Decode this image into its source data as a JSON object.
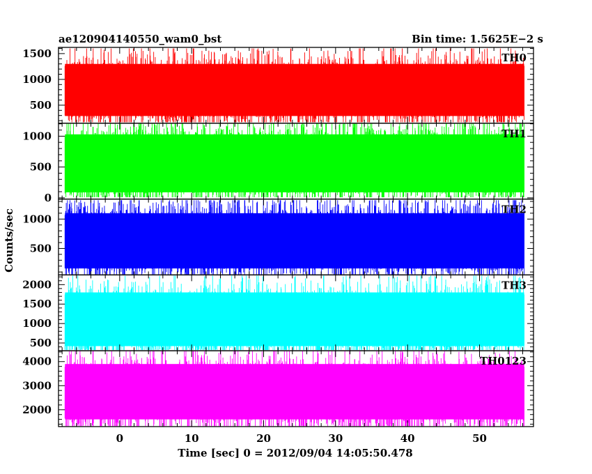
{
  "header": {
    "left_title": "ae120904140550_wam0_bst",
    "right_title": "Bin time: 1.5625E−2 s"
  },
  "ylabel": "Counts/sec",
  "xlabel": "Time [sec] 0 = 2012/09/04 14:05:50.478",
  "chart_data": {
    "type": "line",
    "title": "ae120904140550_wam0_bst",
    "bin_time": "Bin time: 1.5625E−2 s",
    "xlabel": "Time [sec] 0 = 2012/09/04 14:05:50.478",
    "ylabel": "Counts/sec",
    "xlim": [
      -8.5,
      57.5
    ],
    "x_data_range": [
      -7.6,
      56.2
    ],
    "x_ticks": [
      0,
      10,
      20,
      30,
      40,
      50
    ],
    "x_minor_step": 2,
    "grid": false,
    "panels": [
      {
        "name": "TH0",
        "color": "#ff0000",
        "ylim": [
          150,
          1620
        ],
        "yticks": [
          500,
          1000,
          1500
        ],
        "y_minor_step": 100,
        "band": {
          "low": 290,
          "mean": 760,
          "high": 1300,
          "min": 170,
          "max": 1600
        }
      },
      {
        "name": "TH1",
        "color": "#00ff00",
        "ylim": [
          -20,
          1210
        ],
        "yticks": [
          0,
          500,
          1000
        ],
        "y_minor_step": 100,
        "band": {
          "low": 90,
          "mean": 560,
          "high": 1030,
          "min": 10,
          "max": 1200
        }
      },
      {
        "name": "TH2",
        "color": "#0000ff",
        "ylim": [
          50,
          1340
        ],
        "yticks": [
          500,
          1000
        ],
        "y_minor_step": 100,
        "band": {
          "low": 160,
          "mean": 640,
          "high": 1100,
          "min": 60,
          "max": 1320
        }
      },
      {
        "name": "TH3",
        "color": "#00ffff",
        "ylim": [
          300,
          2250
        ],
        "yticks": [
          500,
          1000,
          1500,
          2000
        ],
        "y_minor_step": 100,
        "band": {
          "low": 420,
          "mean": 1050,
          "high": 1800,
          "min": 320,
          "max": 2230
        }
      },
      {
        "name": "TH0123",
        "color": "#ff00ff",
        "ylim": [
          1300,
          4450
        ],
        "yticks": [
          2000,
          3000,
          4000
        ],
        "y_minor_step": 200,
        "band": {
          "low": 1600,
          "mean": 2650,
          "high": 3900,
          "min": 1320,
          "max": 4430
        }
      }
    ]
  }
}
